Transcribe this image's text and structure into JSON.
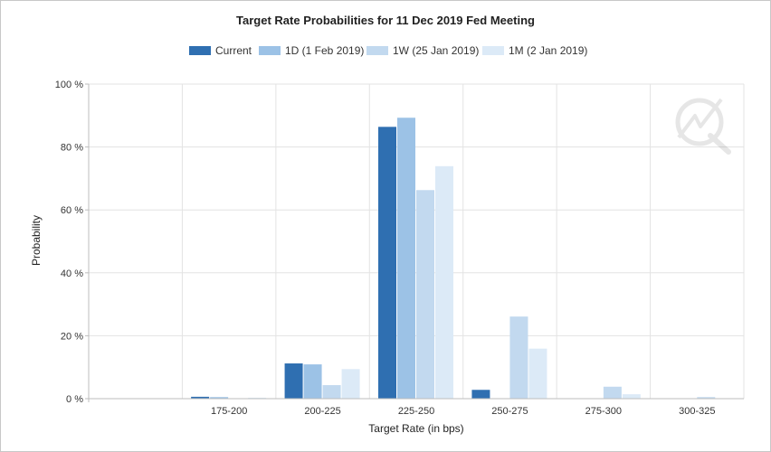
{
  "chart_data": {
    "type": "bar",
    "title": "Target Rate Probabilities for 11 Dec 2019 Fed Meeting",
    "xlabel": "Target Rate (in bps)",
    "ylabel": "Probability",
    "categories": [
      "",
      "175-200",
      "200-225",
      "225-250",
      "250-275",
      "275-300",
      "300-325"
    ],
    "ylim": [
      0,
      100
    ],
    "yticks": [
      0,
      20,
      40,
      60,
      80,
      100
    ],
    "ytick_labels": [
      "0 %",
      "20 %",
      "40 %",
      "60 %",
      "80 %",
      "100 %"
    ],
    "grid": true,
    "legend_position": "top",
    "series": [
      {
        "name": "Current",
        "color": "#2f6fb1",
        "values": [
          0,
          0.6,
          11.2,
          86.4,
          2.8,
          0,
          0
        ]
      },
      {
        "name": "1D (1 Feb 2019)",
        "color": "#9cc2e6",
        "values": [
          0,
          0.5,
          10.9,
          89.3,
          0,
          0,
          0
        ]
      },
      {
        "name": "1W (25 Jan 2019)",
        "color": "#c2d9ef",
        "values": [
          0,
          0,
          4.3,
          66.3,
          26.1,
          3.8,
          0.5
        ]
      },
      {
        "name": "1M (2 Jan 2019)",
        "color": "#dceaf7",
        "values": [
          0,
          0.3,
          9.4,
          73.9,
          15.9,
          1.4,
          0
        ]
      }
    ]
  }
}
